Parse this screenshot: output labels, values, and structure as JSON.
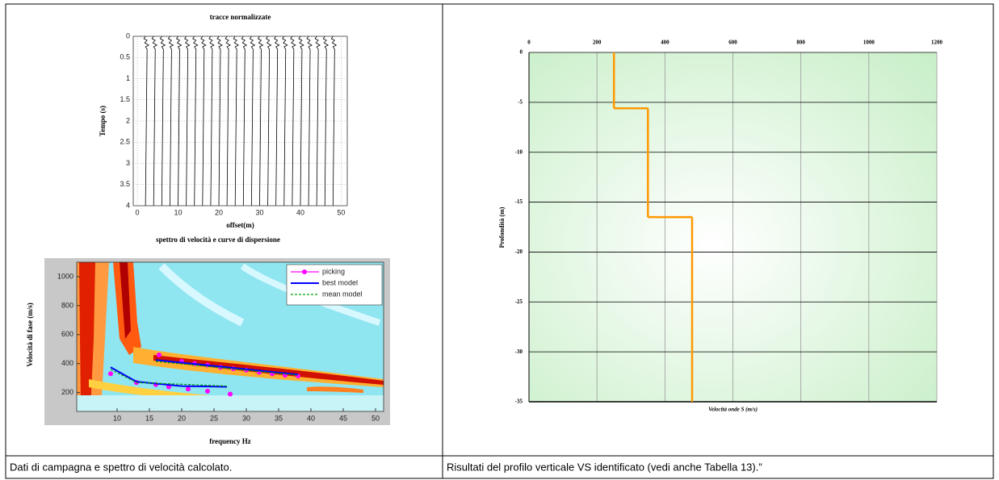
{
  "left_top": {
    "title": "tracce normalizzate",
    "xlabel": "offset(m)",
    "ylabel": "Tempo (s)",
    "xlim": [
      -1,
      51.5
    ],
    "ylim": [
      0,
      4
    ],
    "xticks": [
      0,
      10,
      20,
      30,
      40,
      50
    ],
    "yticks": [
      0,
      0.5,
      1,
      1.5,
      2,
      2.5,
      3,
      3.5,
      4
    ],
    "trace_offsets": [
      2,
      4,
      6,
      8,
      10,
      12,
      14,
      16,
      18,
      20,
      22,
      24,
      26,
      28,
      30,
      32,
      34,
      36,
      38,
      40,
      42,
      44,
      46,
      48
    ]
  },
  "left_bottom": {
    "title": "spettro di velocità e curve di dispersione",
    "xlabel": "frequency Hz",
    "ylabel": "Velocità di fase (m/s)",
    "xlim": [
      3.75,
      51.25
    ],
    "ylim": [
      70,
      1100
    ],
    "xticks": [
      10,
      15,
      20,
      25,
      30,
      35,
      40,
      45,
      50
    ],
    "yticks": [
      200,
      400,
      600,
      800,
      1000
    ],
    "series": [
      {
        "name": "picking",
        "color": "#ff00ff",
        "style": "points",
        "x": [
          16.5,
          20,
          22,
          24,
          26,
          28,
          30,
          32,
          34,
          36,
          38,
          9,
          13,
          16,
          18,
          21,
          24,
          27.5
        ],
        "y": [
          460,
          415,
          400,
          390,
          375,
          365,
          355,
          340,
          330,
          320,
          315,
          330,
          270,
          255,
          240,
          225,
          210,
          190
        ]
      },
      {
        "name": "best model",
        "color": "#0000ff",
        "style": "solid",
        "x": [
          16,
          27,
          38,
          null,
          9,
          13,
          20,
          27
        ],
        "y": [
          425,
          375,
          325,
          null,
          375,
          275,
          245,
          240
        ]
      },
      {
        "name": "mean model",
        "color": "#00a000",
        "style": "dashed",
        "x": [
          16,
          38,
          null,
          9,
          13,
          27
        ],
        "y": [
          415,
          320,
          null,
          360,
          270,
          245
        ]
      }
    ]
  },
  "right": {
    "xlabel": "Velocità onde S (m/s)",
    "ylabel": "Profondità (m)",
    "xlim": [
      0,
      1200
    ],
    "ylim": [
      0,
      -35
    ],
    "xticks": [
      0,
      200,
      400,
      600,
      800,
      1000,
      1200
    ],
    "yticks": [
      0,
      -5,
      -10,
      -15,
      -20,
      -25,
      -30,
      -35
    ],
    "layer_depths": [
      0,
      -5.6,
      -16.5,
      -35
    ],
    "layer_vs": [
      250,
      350,
      480
    ],
    "color": "#ff9900"
  },
  "captions": [
    "Dati di campagna e spettro di velocità calcolato.",
    "Risultati del profilo verticale VS identificato (vedi anche Tabella 13).”"
  ]
}
